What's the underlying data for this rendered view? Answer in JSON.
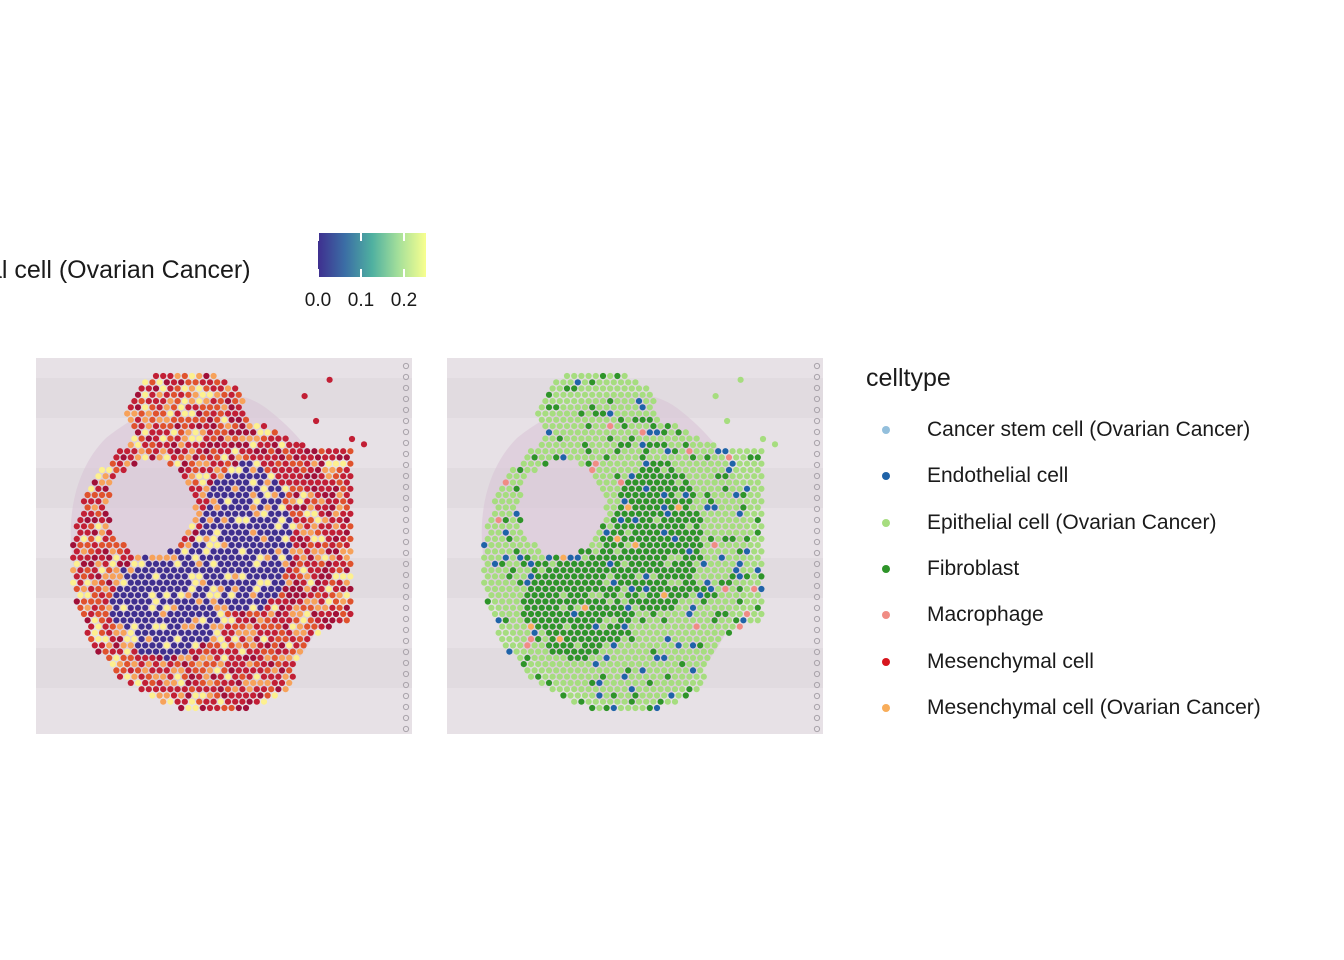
{
  "colorbar": {
    "title": "al cell (Ovarian Cancer)",
    "ticks": [
      "0.0",
      "0.1",
      "0.2"
    ],
    "range": [
      0.0,
      0.25
    ],
    "gradient": [
      "#3f2f8f",
      "#3b6ea5",
      "#4fb0a0",
      "#a6e09a",
      "#f8ff8f"
    ]
  },
  "legend": {
    "title": "celltype",
    "items": [
      {
        "label": "Cancer stem cell (Ovarian Cancer)",
        "color": "#93bfdc"
      },
      {
        "label": "Endothelial cell",
        "color": "#1f63a8"
      },
      {
        "label": "Epithelial cell (Ovarian Cancer)",
        "color": "#a6dd7f"
      },
      {
        "label": "Fibroblast",
        "color": "#2e9429"
      },
      {
        "label": "Macrophage",
        "color": "#f08c84"
      },
      {
        "label": "Mesenchymal cell",
        "color": "#d7151d"
      },
      {
        "label": "Mesenchymal cell (Ovarian Cancer)",
        "color": "#f8ad5a"
      }
    ]
  },
  "chart_data": [
    {
      "type": "scatter",
      "description_of_encoding": "spatial spot map over tissue image, colored by continuous score",
      "title": "",
      "color_scale": "Spectral (continuous)",
      "color_range": [
        0.0,
        0.25
      ],
      "palette": [
        "#3f2f8f",
        "#5a4aa3",
        "#fdf08f",
        "#f7a25a",
        "#e0522d",
        "#c21f35",
        "#a01038"
      ]
    },
    {
      "type": "scatter",
      "title": "",
      "color_scale": "categorical celltype",
      "categories": [
        "Cancer stem cell (Ovarian Cancer)",
        "Endothelial cell",
        "Epithelial cell (Ovarian Cancer)",
        "Fibroblast",
        "Macrophage",
        "Mesenchymal cell",
        "Mesenchymal cell (Ovarian Cancer)"
      ]
    }
  ]
}
